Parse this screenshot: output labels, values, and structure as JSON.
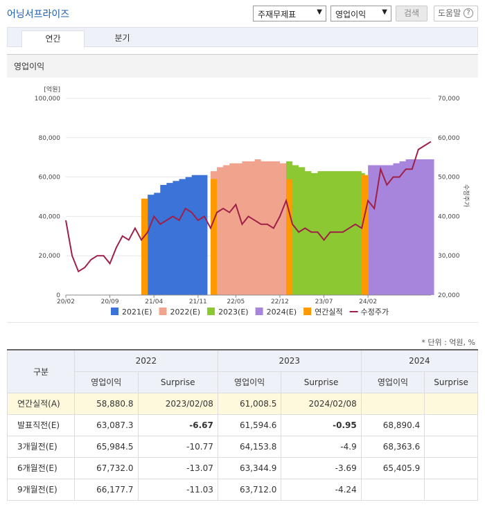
{
  "header": {
    "title": "어닝서프라이즈",
    "select1": "주재무제표",
    "select2": "영업이익",
    "search_label": "검색",
    "help_label": "도움말",
    "help_icon": "?"
  },
  "tabs": [
    "연간",
    "분기"
  ],
  "section_title": "영업이익",
  "unit_note": "* 단위 : 억원, %",
  "colors": {
    "e2021": "#3b73d9",
    "e2022": "#f0a48e",
    "e2023": "#8cc832",
    "e2024": "#a885dc",
    "actual": "#ff9900",
    "price": "#9e2047"
  },
  "chart_data": {
    "type": "area",
    "ylabel_left": "[억원]",
    "ylabel_right": "수정주가",
    "y_left_ticks": [
      "0",
      "20,000",
      "40,000",
      "60,000",
      "80,000",
      "100,000"
    ],
    "y_right_ticks": [
      "20,000",
      "30,000",
      "40,000",
      "50,000",
      "60,000",
      "70,000"
    ],
    "x_ticks": [
      "20/02",
      "20/09",
      "21/04",
      "21/11",
      "22/05",
      "22/12",
      "23/07",
      "24/02"
    ],
    "ylim_left": [
      0,
      100000
    ],
    "ylim_right": [
      20000,
      70000
    ],
    "x_range": [
      "2020-02",
      "2024-12"
    ],
    "legend": [
      "2021(E)",
      "2022(E)",
      "2023(E)",
      "2024(E)",
      "연간실적",
      "수정주가"
    ],
    "estimate_series": [
      {
        "name": "2021(E)",
        "from": "2021-03",
        "to": "2021-12",
        "values": [
          51000,
          52000,
          56000,
          57000,
          58000,
          59000,
          60000,
          61000,
          61000,
          61000
        ]
      },
      {
        "name": "2022(E)",
        "from": "2022-01",
        "to": "2023-01",
        "values": [
          63000,
          65000,
          66000,
          67000,
          67000,
          68000,
          68000,
          69000,
          68000,
          68000,
          68000,
          67000,
          66000
        ]
      },
      {
        "name": "2023(E)",
        "from": "2023-01",
        "to": "2024-01",
        "values": [
          68000,
          66000,
          65000,
          63000,
          62000,
          63000,
          63000,
          63000,
          63000,
          63000,
          63000,
          63000,
          62000
        ]
      },
      {
        "name": "2024(E)",
        "from": "2024-02",
        "to": "2024-12",
        "values": [
          66000,
          66000,
          66000,
          66000,
          67000,
          68000,
          69000,
          69000,
          69000,
          69000,
          69000
        ]
      }
    ],
    "actual_bars": [
      {
        "name": "연간실적",
        "from": "2021-02",
        "to": "2021-03",
        "value": 49000
      },
      {
        "name": "연간실적",
        "from": "2022-01",
        "to": "2022-02",
        "value": 59000
      },
      {
        "name": "연간실적",
        "from": "2023-01",
        "to": "2023-02",
        "value": 58880.8
      },
      {
        "name": "연간실적",
        "from": "2024-01",
        "to": "2024-02",
        "value": 61008.5
      }
    ],
    "price_series": {
      "name": "수정주가",
      "x": [
        "2020-02",
        "2020-03",
        "2020-04",
        "2020-05",
        "2020-06",
        "2020-07",
        "2020-08",
        "2020-09",
        "2020-10",
        "2020-11",
        "2020-12",
        "2021-01",
        "2021-02",
        "2021-03",
        "2021-04",
        "2021-05",
        "2021-06",
        "2021-07",
        "2021-08",
        "2021-09",
        "2021-10",
        "2021-11",
        "2021-12",
        "2022-01",
        "2022-02",
        "2022-03",
        "2022-04",
        "2022-05",
        "2022-06",
        "2022-07",
        "2022-08",
        "2022-09",
        "2022-10",
        "2022-11",
        "2022-12",
        "2023-01",
        "2023-02",
        "2023-03",
        "2023-04",
        "2023-05",
        "2023-06",
        "2023-07",
        "2023-08",
        "2023-09",
        "2023-10",
        "2023-11",
        "2023-12",
        "2024-01",
        "2024-02",
        "2024-03",
        "2024-04",
        "2024-05",
        "2024-06",
        "2024-07",
        "2024-08",
        "2024-09",
        "2024-10",
        "2024-11",
        "2024-12"
      ],
      "y": [
        39000,
        30000,
        26000,
        27000,
        29000,
        30000,
        30000,
        28000,
        32000,
        35000,
        34000,
        37000,
        34000,
        36000,
        40000,
        38000,
        39000,
        40000,
        39000,
        42000,
        41000,
        39000,
        40000,
        37000,
        41000,
        42000,
        41000,
        43000,
        38000,
        40000,
        39000,
        38000,
        38000,
        37000,
        40000,
        44000,
        38000,
        36000,
        37000,
        36000,
        36000,
        34000,
        36000,
        36000,
        36000,
        37000,
        38000,
        37000,
        44000,
        42000,
        52000,
        48000,
        50000,
        50000,
        52000,
        52000,
        57000,
        58000,
        59000
      ]
    }
  },
  "table": {
    "corner": "구분",
    "years": [
      "2022",
      "2023",
      "2024"
    ],
    "sub_headers": [
      "영업이익",
      "Surprise"
    ],
    "rows": [
      {
        "label": "연간실적(A)",
        "cells": [
          "58,880.8",
          "2023/02/08",
          "61,008.5",
          "2024/02/08",
          "",
          ""
        ]
      },
      {
        "label": "발표직전(E)",
        "cells": [
          "63,087.3",
          "-6.67",
          "61,594.6",
          "-0.95",
          "68,890.4",
          ""
        ]
      },
      {
        "label": "3개월전(E)",
        "cells": [
          "65,984.5",
          "-10.77",
          "64,153.8",
          "-4.9",
          "68,363.6",
          ""
        ]
      },
      {
        "label": "6개월전(E)",
        "cells": [
          "67,732.0",
          "-13.07",
          "63,344.9",
          "-3.69",
          "65,405.9",
          ""
        ]
      },
      {
        "label": "9개월전(E)",
        "cells": [
          "66,177.7",
          "-11.03",
          "63,712.0",
          "-4.24",
          "",
          ""
        ]
      }
    ]
  }
}
